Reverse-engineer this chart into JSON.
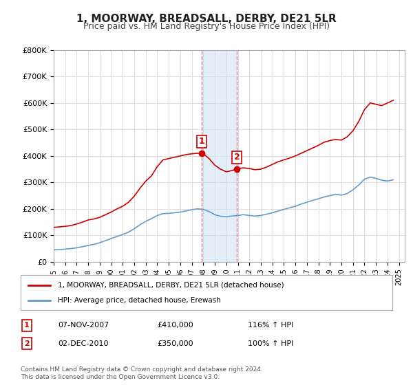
{
  "title": "1, MOORWAY, BREADSALL, DERBY, DE21 5LR",
  "subtitle": "Price paid vs. HM Land Registry's House Price Index (HPI)",
  "ylabel_ticks": [
    "£0",
    "£100K",
    "£200K",
    "£300K",
    "£400K",
    "£500K",
    "£600K",
    "£700K",
    "£800K"
  ],
  "ytick_values": [
    0,
    100000,
    200000,
    300000,
    400000,
    500000,
    600000,
    700000,
    800000
  ],
  "ylim": [
    0,
    800000
  ],
  "xlim_start": 1995.0,
  "xlim_end": 2025.5,
  "sale1_x": 2007.854,
  "sale1_y": 410000,
  "sale1_label": "1",
  "sale2_x": 2010.919,
  "sale2_y": 350000,
  "sale2_label": "2",
  "shade_color": "#cce0f5",
  "shade_alpha": 0.5,
  "vline_color": "#e05050",
  "vline_alpha": 0.7,
  "red_line_color": "#cc0000",
  "blue_line_color": "#6699cc",
  "legend1": "1, MOORWAY, BREADSALL, DERBY, DE21 5LR (detached house)",
  "legend2": "HPI: Average price, detached house, Erewash",
  "table_rows": [
    {
      "num": "1",
      "date": "07-NOV-2007",
      "price": "£410,000",
      "hpi": "116% ↑ HPI"
    },
    {
      "num": "2",
      "date": "02-DEC-2010",
      "price": "£350,000",
      "hpi": "100% ↑ HPI"
    }
  ],
  "footer": "Contains HM Land Registry data © Crown copyright and database right 2024.\nThis data is licensed under the Open Government Licence v3.0.",
  "background_color": "#ffffff",
  "grid_color": "#dddddd",
  "hpi_red_data_x": [
    1995.0,
    1995.5,
    1996.0,
    1996.5,
    1997.0,
    1997.5,
    1998.0,
    1998.5,
    1999.0,
    1999.5,
    2000.0,
    2000.5,
    2001.0,
    2001.5,
    2002.0,
    2002.5,
    2003.0,
    2003.5,
    2004.0,
    2004.5,
    2005.0,
    2005.5,
    2006.0,
    2006.5,
    2007.0,
    2007.5,
    2007.854,
    2008.0,
    2008.5,
    2009.0,
    2009.5,
    2010.0,
    2010.5,
    2010.919,
    2011.0,
    2011.5,
    2012.0,
    2012.5,
    2013.0,
    2013.5,
    2014.0,
    2014.5,
    2015.0,
    2015.5,
    2016.0,
    2016.5,
    2017.0,
    2017.5,
    2018.0,
    2018.5,
    2019.0,
    2019.5,
    2020.0,
    2020.5,
    2021.0,
    2021.5,
    2022.0,
    2022.5,
    2023.0,
    2023.5,
    2024.0,
    2024.5
  ],
  "hpi_red_data_y": [
    130000,
    132000,
    134000,
    137000,
    143000,
    150000,
    158000,
    162000,
    168000,
    178000,
    188000,
    200000,
    210000,
    225000,
    248000,
    278000,
    305000,
    325000,
    360000,
    385000,
    390000,
    395000,
    400000,
    405000,
    408000,
    410000,
    410000,
    408000,
    390000,
    365000,
    350000,
    340000,
    345000,
    350000,
    352000,
    355000,
    352000,
    348000,
    350000,
    358000,
    368000,
    378000,
    385000,
    392000,
    400000,
    410000,
    420000,
    430000,
    440000,
    452000,
    458000,
    462000,
    460000,
    472000,
    495000,
    530000,
    575000,
    600000,
    595000,
    590000,
    600000,
    610000
  ],
  "hpi_blue_data_x": [
    1995.0,
    1995.5,
    1996.0,
    1996.5,
    1997.0,
    1997.5,
    1998.0,
    1998.5,
    1999.0,
    1999.5,
    2000.0,
    2000.5,
    2001.0,
    2001.5,
    2002.0,
    2002.5,
    2003.0,
    2003.5,
    2004.0,
    2004.5,
    2005.0,
    2005.5,
    2006.0,
    2006.5,
    2007.0,
    2007.5,
    2008.0,
    2008.5,
    2009.0,
    2009.5,
    2010.0,
    2010.5,
    2011.0,
    2011.5,
    2012.0,
    2012.5,
    2013.0,
    2013.5,
    2014.0,
    2014.5,
    2015.0,
    2015.5,
    2016.0,
    2016.5,
    2017.0,
    2017.5,
    2018.0,
    2018.5,
    2019.0,
    2019.5,
    2020.0,
    2020.5,
    2021.0,
    2021.5,
    2022.0,
    2022.5,
    2023.0,
    2023.5,
    2024.0,
    2024.5
  ],
  "hpi_blue_data_y": [
    45000,
    46000,
    48000,
    50000,
    53000,
    57000,
    62000,
    66000,
    72000,
    80000,
    88000,
    96000,
    103000,
    112000,
    125000,
    140000,
    153000,
    163000,
    175000,
    182000,
    183000,
    185000,
    188000,
    192000,
    197000,
    200000,
    198000,
    190000,
    178000,
    172000,
    170000,
    173000,
    175000,
    178000,
    175000,
    173000,
    175000,
    180000,
    185000,
    192000,
    198000,
    204000,
    210000,
    218000,
    225000,
    232000,
    238000,
    245000,
    250000,
    255000,
    252000,
    258000,
    272000,
    290000,
    312000,
    320000,
    315000,
    308000,
    305000,
    310000
  ]
}
